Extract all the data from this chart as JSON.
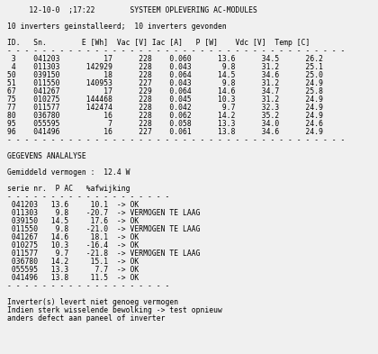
{
  "title_line": "     12-10-0  ;17:22        SYSTEEM OPLEVERING AC-MODULES",
  "subtitle": "10 inverters geinstalleerd;  10 inverters gevonden",
  "table_header": "ID.   Sn.        E [Wh]  Vac [V] Iac [A]   P [W]    Vdc [V]  Temp [C]",
  "table_rows": [
    " 3    041203          17      228    0.060      13.6      34.5      26.2",
    " 4    011303      142929      228    0.043       9.8      31.2      25.1",
    "50    039150          18      228    0.064      14.5      34.6      25.0",
    "51    011550      140953      227    0.043       9.8      31.2      24.9",
    "67    041267          17      229    0.064      14.6      34.7      25.8",
    "75    010275      144468      228    0.045      10.3      31.2      24.9",
    "77    011577      142474      228    0.042       9.7      32.3      24.9",
    "80    036780          16      228    0.062      14.2      35.2      24.9",
    "95    055595           7      228    0.058      13.3      34.0      24.6",
    "96    041496          16      227    0.061      13.8      34.6      24.9"
  ],
  "dash_long": "- - - - - - - - - - - - - - - - - - - - - - - - - - - - - - - - - - - - - - -",
  "analysis_header": "GEGEVENS ANALALYSE",
  "avg_power": "Gemiddeld vermogen :  12.4 W",
  "analysis_col_header": "serie nr.  P AC   %afwijking",
  "dash_short": "- - - - - - - - - - - - - - - - - - -",
  "analysis_rows": [
    " 041203   13.6     10.1  -> OK",
    " 011303    9.8    -20.7  -> VERMOGEN TE LAAG",
    " 039150   14.5     17.6  -> OK",
    " 011550    9.8    -21.0  -> VERMOGEN TE LAAG",
    " 041267   14.6     18.1  -> OK",
    " 010275   10.3    -16.4  -> OK",
    " 011577    9.7    -21.8  -> VERMOGEN TE LAAG",
    " 036780   14.2     15.1  -> OK",
    " 055595   13.3      7.7  -> OK",
    " 041496   13.8     11.5  -> OK"
  ],
  "footer_lines": [
    "Inverter(s) levert niet genoeg vermogen",
    "Indien sterk wisselende bewolking -> test opnieuw",
    "anders defect aan paneel of inverter"
  ],
  "bg_color": "#f0f0f0",
  "text_color": "#000000",
  "font_size": 5.8
}
